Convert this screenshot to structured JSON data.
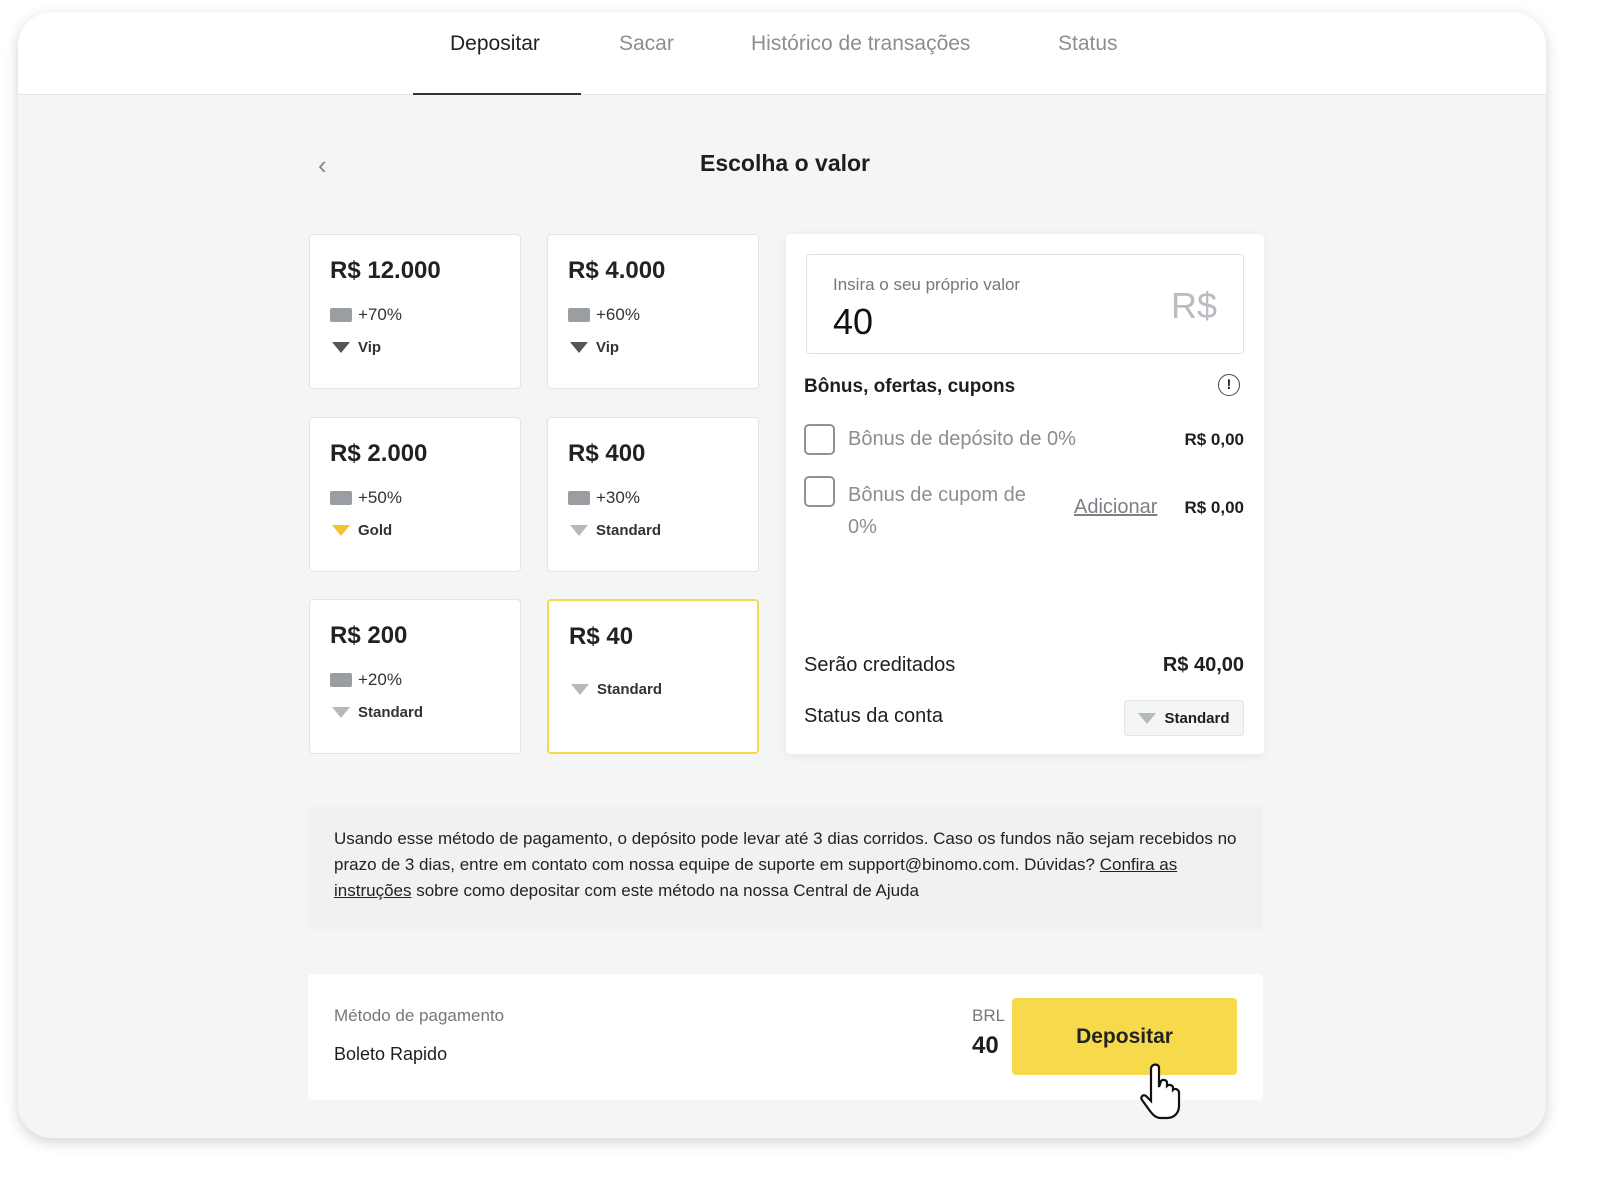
{
  "tabs": [
    {
      "label": "Depositar"
    },
    {
      "label": "Sacar"
    },
    {
      "label": "Histórico de transações"
    },
    {
      "label": "Status"
    }
  ],
  "page_title": "Escolha o valor",
  "cards": [
    {
      "amount": "R$ 12.000",
      "bonus": "+70%",
      "level": "Vip"
    },
    {
      "amount": "R$ 4.000",
      "bonus": "+60%",
      "level": "Vip"
    },
    {
      "amount": "R$ 2.000",
      "bonus": "+50%",
      "level": "Gold"
    },
    {
      "amount": "R$ 400",
      "bonus": "+30%",
      "level": "Standard"
    },
    {
      "amount": "R$ 200",
      "bonus": "+20%",
      "level": "Standard"
    },
    {
      "amount": "R$ 40",
      "level": "Standard",
      "selected": true
    }
  ],
  "panel": {
    "input_label": "Insira o seu próprio valor",
    "input_value": "40",
    "currency": "R$",
    "bonus_title": "Bônus, ofertas, cupons",
    "deposit_bonus": "Bônus de depósito de 0%",
    "deposit_bonus_value": "R$ 0,00",
    "coupon_bonus_line1": "Bônus de cupom de",
    "coupon_bonus_line2": "0%",
    "coupon_add": "Adicionar",
    "coupon_value": "R$ 0,00",
    "credited_label": "Serão creditados",
    "credited_value": "R$ 40,00",
    "status_label": "Status da conta",
    "status_value": "Standard"
  },
  "note": {
    "text1": "Usando esse método de pagamento, o depósito pode levar até 3 dias corridos. Caso os fundos não sejam recebidos no prazo de 3 dias, entre em contato com nossa equipe de suporte em support@binomo.com.",
    "text2": "Dúvidas?",
    "link": "Confira as instruções",
    "text3": "sobre como depositar com este método na nossa Central de Ajuda"
  },
  "footer": {
    "method_label": "Método de pagamento",
    "method_value": "Boleto Rapido",
    "currency": "BRL",
    "amount": "40",
    "button": "Depositar"
  },
  "colors": {
    "accent": "#f7d94c",
    "gold": "#f2c230"
  }
}
